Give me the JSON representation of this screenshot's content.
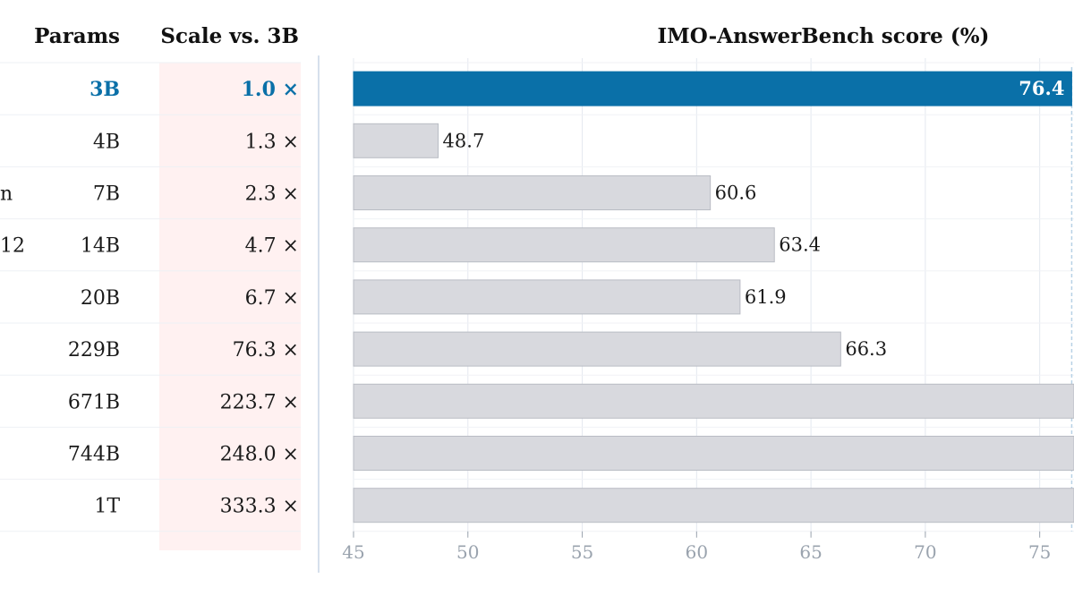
{
  "table": {
    "params_header": "Params",
    "scale_header": "Scale vs. 3B",
    "rows": [
      {
        "model_fragment": "",
        "params": "3B",
        "scale": "1.0 ×",
        "highlight": true
      },
      {
        "model_fragment": "",
        "params": "4B",
        "scale": "1.3 ×",
        "highlight": false
      },
      {
        "model_fragment": "n",
        "params": "7B",
        "scale": "2.3 ×",
        "highlight": false
      },
      {
        "model_fragment": "12",
        "params": "14B",
        "scale": "4.7 ×",
        "highlight": false
      },
      {
        "model_fragment": "",
        "params": "20B",
        "scale": "6.7 ×",
        "highlight": false
      },
      {
        "model_fragment": "",
        "params": "229B",
        "scale": "76.3 ×",
        "highlight": false
      },
      {
        "model_fragment": "",
        "params": "671B",
        "scale": "223.7 ×",
        "highlight": false
      },
      {
        "model_fragment": "",
        "params": "744B",
        "scale": "248.0 ×",
        "highlight": false
      },
      {
        "model_fragment": "",
        "params": "1T",
        "scale": "333.3 ×",
        "highlight": false
      }
    ]
  },
  "chart_data": {
    "type": "bar",
    "orientation": "horizontal",
    "title": "IMO-AnswerBench score (%)",
    "xlabel": "",
    "ylabel": "",
    "xlim": [
      45,
      76.5
    ],
    "xticks": [
      45,
      50,
      55,
      60,
      65,
      70,
      75
    ],
    "categories": [
      "3B",
      "4B",
      "7B",
      "14B",
      "20B",
      "229B",
      "671B",
      "744B",
      "1T"
    ],
    "values": [
      76.4,
      48.7,
      60.6,
      63.4,
      61.9,
      66.3,
      76.5,
      76.5,
      76.5
    ],
    "value_labels": [
      "76.4",
      "48.7",
      "60.6",
      "63.4",
      "61.9",
      "66.3",
      "",
      "",
      ""
    ],
    "highlight_index": 0,
    "grid": true,
    "colors": {
      "highlight_bar": "#0a70a8",
      "bar": "#d8d9de",
      "bar_stroke": "#b9bcc4",
      "highlight_text": "#0a70a8",
      "scale_column_bg": "#fff1f1",
      "grid": "#e4e8ef",
      "tick_text": "#9aa3ae",
      "reference_line": "#b8d2e6"
    }
  }
}
